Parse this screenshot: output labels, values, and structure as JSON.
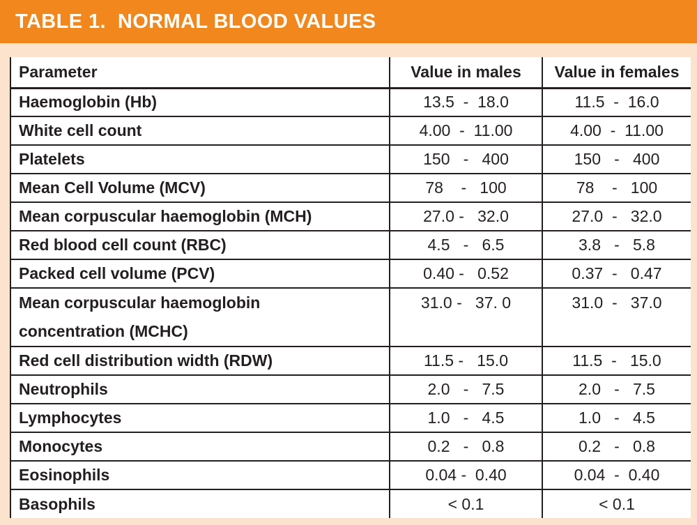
{
  "title_bar": {
    "title": "TABLE 1.  NORMAL BLOOD VALUES"
  },
  "colors": {
    "title_bar_bg": "#F1871D",
    "page_bg": "#FBE3CD",
    "table_bg": "#FFFFFF",
    "rule": "#231F20",
    "text": "#231F20",
    "title_text": "#FFFFFF"
  },
  "chart_data": {
    "type": "table",
    "title": "TABLE 1.  NORMAL BLOOD VALUES",
    "columns": [
      "Parameter",
      "Value in males",
      "Value in females"
    ],
    "rows": [
      {
        "parameter": "Haemoglobin (Hb)",
        "param_lines": [
          "Haemoglobin (Hb)"
        ],
        "males": "13.5  -  18.0",
        "females": "11.5  -  16.0"
      },
      {
        "parameter": "White cell count",
        "param_lines": [
          "White cell count"
        ],
        "males": "4.00  -  11.00",
        "females": "4.00  -  11.00"
      },
      {
        "parameter": "Platelets",
        "param_lines": [
          "Platelets"
        ],
        "males": "150   -   400",
        "females": "150   -   400"
      },
      {
        "parameter": "Mean Cell Volume (MCV)",
        "param_lines": [
          "Mean Cell Volume (MCV)"
        ],
        "males": "78    -   100",
        "females": "78    -   100"
      },
      {
        "parameter": "Mean corpuscular haemoglobin (MCH)",
        "param_lines": [
          "Mean corpuscular haemoglobin (MCH)"
        ],
        "males": "27.0 -   32.0",
        "females": "27.0  -   32.0"
      },
      {
        "parameter": "Red blood cell count (RBC)",
        "param_lines": [
          "Red blood cell count (RBC)"
        ],
        "males": "4.5   -   6.5",
        "females": "3.8   -   5.8"
      },
      {
        "parameter": "Packed cell volume (PCV)",
        "param_lines": [
          "Packed cell volume (PCV)"
        ],
        "males": "0.40 -   0.52",
        "females": "0.37  -   0.47"
      },
      {
        "parameter": "Mean corpuscular haemoglobin concentration (MCHC)",
        "param_lines": [
          "Mean corpuscular haemoglobin",
          "concentration (MCHC)"
        ],
        "males": "31.0 -   37. 0",
        "females": "31.0  -   37.0",
        "tall": true
      },
      {
        "parameter": "Red cell distribution width (RDW)",
        "param_lines": [
          "Red cell distribution width (RDW)"
        ],
        "males": "11.5 -   15.0",
        "females": "11.5  -   15.0"
      },
      {
        "parameter": "Neutrophils",
        "param_lines": [
          "Neutrophils"
        ],
        "males": "2.0   -   7.5",
        "females": "2.0   -   7.5"
      },
      {
        "parameter": "Lymphocytes",
        "param_lines": [
          "Lymphocytes"
        ],
        "males": "1.0   -   4.5",
        "females": "1.0   -   4.5"
      },
      {
        "parameter": "Monocytes",
        "param_lines": [
          "Monocytes"
        ],
        "males": "0.2   -   0.8",
        "females": "0.2   -   0.8"
      },
      {
        "parameter": "Eosinophils",
        "param_lines": [
          "Eosinophils"
        ],
        "males": "0.04 -  0.40",
        "females": "0.04  -  0.40"
      },
      {
        "parameter": "Basophils",
        "param_lines": [
          "Basophils"
        ],
        "males": "< 0.1",
        "females": "< 0.1"
      }
    ]
  }
}
